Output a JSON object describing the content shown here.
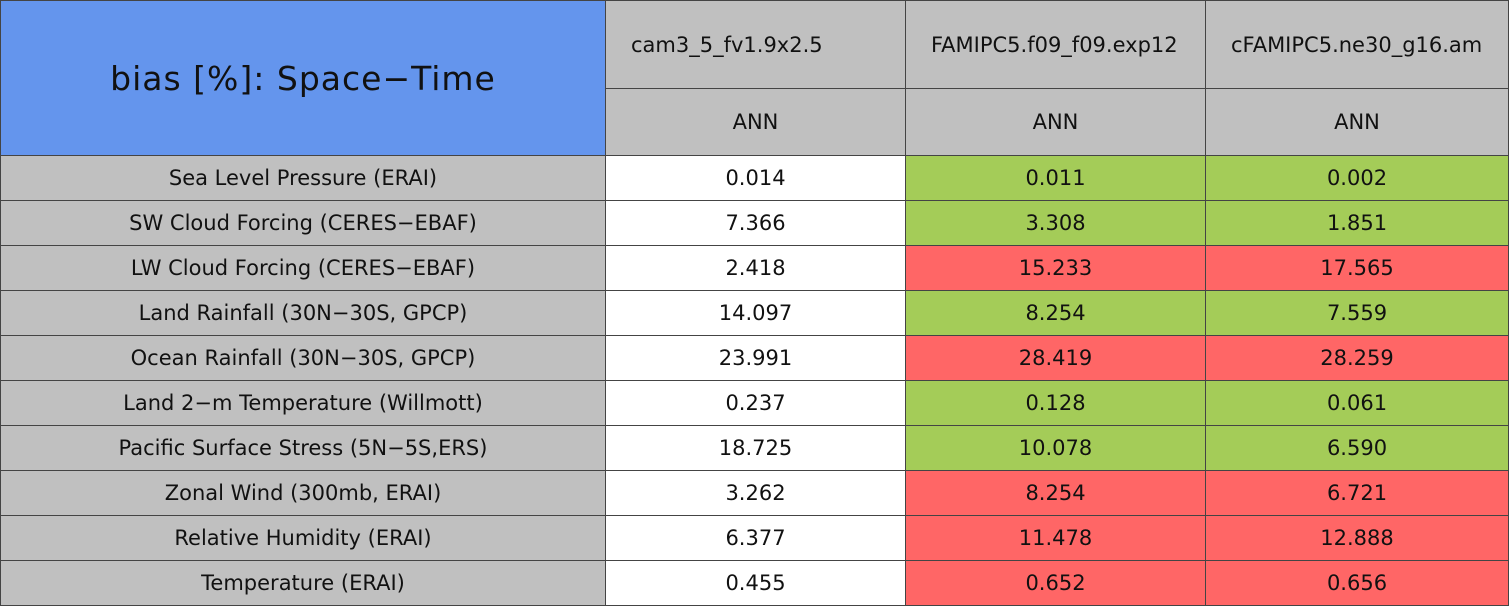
{
  "title": "bias [%]: Space−Time",
  "columns": [
    "cam3_5_fv1.9x2.5",
    "FAMIPC5.f09_f09.exp12",
    "cFAMIPC5.ne30_g16.am"
  ],
  "seasons": [
    "ANN",
    "ANN",
    "ANN"
  ],
  "rows": [
    {
      "label": "Sea Level Pressure (ERAI)",
      "cells": [
        "0.014",
        "0.011",
        "0.002"
      ],
      "colors": [
        "#ffffff",
        "#a4cc58",
        "#a4cc58"
      ]
    },
    {
      "label": "SW Cloud Forcing (CERES−EBAF)",
      "cells": [
        "7.366",
        "3.308",
        "1.851"
      ],
      "colors": [
        "#ffffff",
        "#a4cc58",
        "#a4cc58"
      ]
    },
    {
      "label": "LW Cloud Forcing (CERES−EBAF)",
      "cells": [
        "2.418",
        "15.233",
        "17.565"
      ],
      "colors": [
        "#ffffff",
        "#ff6666",
        "#ff6666"
      ]
    },
    {
      "label": "Land Rainfall (30N−30S, GPCP)",
      "cells": [
        "14.097",
        "8.254",
        "7.559"
      ],
      "colors": [
        "#ffffff",
        "#a4cc58",
        "#a4cc58"
      ]
    },
    {
      "label": "Ocean Rainfall (30N−30S, GPCP)",
      "cells": [
        "23.991",
        "28.419",
        "28.259"
      ],
      "colors": [
        "#ffffff",
        "#ff6666",
        "#ff6666"
      ]
    },
    {
      "label": "Land 2−m Temperature (Willmott)",
      "cells": [
        "0.237",
        "0.128",
        "0.061"
      ],
      "colors": [
        "#ffffff",
        "#a4cc58",
        "#a4cc58"
      ]
    },
    {
      "label": "Pacific Surface Stress (5N−5S,ERS)",
      "cells": [
        "18.725",
        "10.078",
        "6.590"
      ],
      "colors": [
        "#ffffff",
        "#a4cc58",
        "#a4cc58"
      ]
    },
    {
      "label": "Zonal Wind (300mb, ERAI)",
      "cells": [
        "3.262",
        "8.254",
        "6.721"
      ],
      "colors": [
        "#ffffff",
        "#ff6666",
        "#ff6666"
      ]
    },
    {
      "label": "Relative Humidity (ERAI)",
      "cells": [
        "6.377",
        "11.478",
        "12.888"
      ],
      "colors": [
        "#ffffff",
        "#ff6666",
        "#ff6666"
      ]
    },
    {
      "label": "Temperature (ERAI)",
      "cells": [
        "0.455",
        "0.652",
        "0.656"
      ],
      "colors": [
        "#ffffff",
        "#ff6666",
        "#ff6666"
      ]
    }
  ]
}
